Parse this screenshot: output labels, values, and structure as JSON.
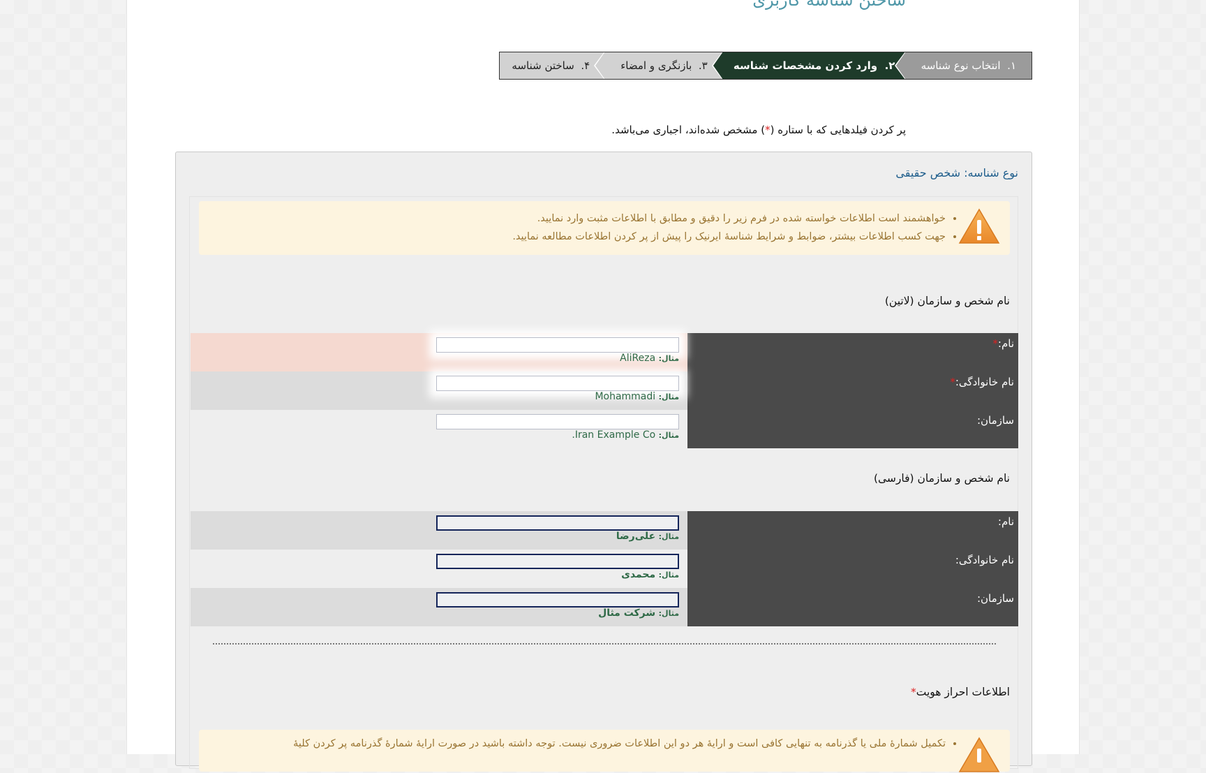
{
  "page_title": "ساختن شناسه کاربری",
  "steps": [
    {
      "number": "۱.",
      "label": "انتخاب نوع شناسه",
      "state": "done"
    },
    {
      "number": "۲.",
      "label": "وارد کردن مشخصات شناسه",
      "state": "active"
    },
    {
      "number": "۳.",
      "label": "بازنگری و امضاء",
      "state": "pending"
    },
    {
      "number": "۴.",
      "label": "ساختن شناسه",
      "state": "pending"
    }
  ],
  "required_note": {
    "before": "پر کردن فیلدهایی که با ستاره (",
    "star": "*",
    "after": ") مشخص شده‌اند، اجباری می‌باشد."
  },
  "identity_type": "نوع شناسه: شخص حقیقی",
  "warning": {
    "icon": "warning-triangle-icon",
    "items": [
      "خواهشمند است اطلاعات خواسته شده در فرم زیر را دقیق و مطابق با اطلاعات مثبت وارد نمایید.",
      "جهت کسب اطلاعات بیشتر، ضوابط و شرایط شناسهٔ ایرنیک را پیش از پر کردن اطلاعات مطالعه نمایید."
    ]
  },
  "latin_section": {
    "title": "نام شخص و سازمان (لاتین)",
    "fields": [
      {
        "label": "نام:",
        "required": "*",
        "value": "",
        "example_label": "مثال:",
        "example": "AliReza"
      },
      {
        "label": "نام خانوادگی:",
        "required": "*",
        "value": "",
        "example_label": "مثال:",
        "example": "Mohammadi"
      },
      {
        "label": "سازمان:",
        "value": "",
        "example_label": "مثال:",
        "example": "Iran Example Co."
      }
    ]
  },
  "persian_section": {
    "title": "نام شخص و سازمان (فارسی)",
    "fields": [
      {
        "label": "نام:",
        "value": "",
        "example_label": "مثال:",
        "example": "علی‌رضا"
      },
      {
        "label": "نام خانوادگی:",
        "value": "",
        "example_label": "مثال:",
        "example": "محمدی"
      },
      {
        "label": "سازمان:",
        "value": "",
        "example_label": "مثال:",
        "example": "شرکت مثال"
      }
    ]
  },
  "auth_section": {
    "title": "اطلاعات احراز هویت",
    "star": "*",
    "warning": "تکمیل شمارهٔ ملی یا گذرنامه به تنهایی کافی است و ارایهٔ هر دو این اطلاعات ضروری نیست. توجه داشته باشید در صورت ارایهٔ شمارهٔ گذرنامه پر کردن کلیهٔ"
  },
  "colors": {
    "active_step": "#1e3b2a",
    "done_step": "#9b9b9b",
    "label_bg": "#4a4a4a",
    "error_row": "#f5d9d0",
    "warning_bg": "#fdf4df",
    "title": "#4f97a8"
  }
}
